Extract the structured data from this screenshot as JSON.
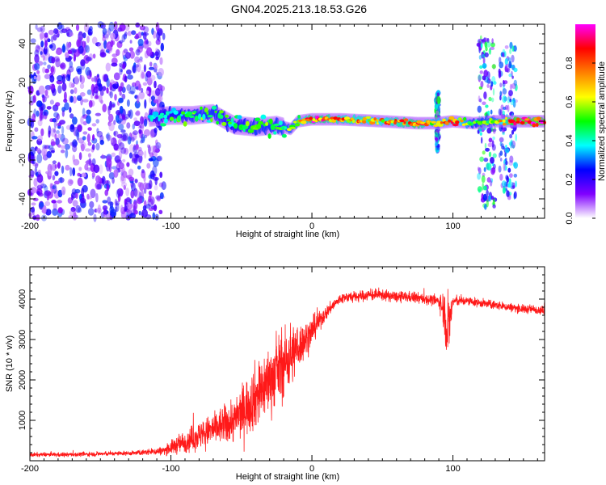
{
  "title": "GN04.2025.213.18.53.G26",
  "chart_data": [
    {
      "type": "heatmap",
      "title": "GN04.2025.213.18.53.G26",
      "xlabel": "Height of straight line (km)",
      "ylabel": "Frequency (Hz)",
      "xlim": [
        -200,
        165
      ],
      "ylim": [
        -50,
        50
      ],
      "xticks": [
        -200,
        -100,
        0,
        100
      ],
      "yticks": [
        -40,
        -20,
        0,
        20,
        40
      ],
      "colorbar": {
        "label": "Normalized spectral amplitude",
        "range": [
          0,
          1
        ],
        "ticks": [
          0.0,
          0.2,
          0.4,
          0.6,
          0.8
        ],
        "colormap": [
          "#ffffff",
          "#8000ff",
          "#0000ff",
          "#00ffff",
          "#00ff00",
          "#ffff00",
          "#ff8000",
          "#ff0000",
          "#ff00ff"
        ]
      },
      "noise_region": {
        "x_range": [
          -200,
          -110
        ],
        "amplitude": 0.15
      },
      "ridge": [
        {
          "x": -115,
          "freq": 2,
          "amp": 0.4
        },
        {
          "x": -100,
          "freq": 3,
          "amp": 0.45
        },
        {
          "x": -85,
          "freq": 3,
          "amp": 0.5
        },
        {
          "x": -70,
          "freq": 4,
          "amp": 0.5
        },
        {
          "x": -55,
          "freq": -2,
          "amp": 0.45
        },
        {
          "x": -40,
          "freq": -3,
          "amp": 0.5
        },
        {
          "x": -25,
          "freq": -2,
          "amp": 0.5
        },
        {
          "x": -15,
          "freq": -4,
          "amp": 0.55
        },
        {
          "x": -10,
          "freq": 0,
          "amp": 0.6
        },
        {
          "x": 0,
          "freq": 1,
          "amp": 0.85
        },
        {
          "x": 20,
          "freq": 1,
          "amp": 0.75
        },
        {
          "x": 50,
          "freq": 0,
          "amp": 0.7
        },
        {
          "x": 75,
          "freq": -1,
          "amp": 0.85
        },
        {
          "x": 88,
          "freq": -1,
          "amp": 0.6
        },
        {
          "x": 100,
          "freq": 0,
          "amp": 0.8
        },
        {
          "x": 115,
          "freq": -1,
          "amp": 0.5
        },
        {
          "x": 130,
          "freq": 0,
          "amp": 0.55
        },
        {
          "x": 145,
          "freq": 0,
          "amp": 0.95
        },
        {
          "x": 165,
          "freq": 0,
          "amp": 0.95
        }
      ],
      "broadband_bursts": [
        {
          "x_range": [
            118,
            130
          ],
          "freq_range": [
            -45,
            45
          ],
          "amp": 0.25
        },
        {
          "x_range": [
            133,
            145
          ],
          "freq_range": [
            -40,
            40
          ],
          "amp": 0.2
        },
        {
          "x_range": [
            88,
            90
          ],
          "freq_range": [
            -15,
            15
          ],
          "amp": 0.25
        }
      ]
    },
    {
      "type": "line",
      "xlabel": "Height of straight line (km)",
      "ylabel": "SNR (10 * v/v)",
      "xlim": [
        -200,
        165
      ],
      "ylim": [
        0,
        4800
      ],
      "xticks": [
        -200,
        -100,
        0,
        100
      ],
      "yticks": [
        1000,
        2000,
        3000,
        4000
      ],
      "line_color": "#ff0000",
      "series": [
        {
          "x": [
            -200,
            -175,
            -150,
            -125,
            -105,
            -95,
            -85,
            -75,
            -65,
            -55,
            -50,
            -45,
            -40,
            -35,
            -30,
            -25,
            -20,
            -15,
            -10,
            -5,
            0,
            5,
            10,
            15,
            20,
            25,
            30,
            40,
            50,
            60,
            70,
            80,
            90,
            94,
            96,
            98,
            100,
            110,
            120,
            130,
            140,
            150,
            160,
            165
          ],
          "y": [
            150,
            150,
            170,
            190,
            250,
            400,
            550,
            700,
            850,
            1000,
            1200,
            1400,
            1600,
            1800,
            2000,
            2200,
            2400,
            2600,
            2800,
            3000,
            3200,
            3450,
            3650,
            3850,
            4000,
            4050,
            4050,
            4100,
            4100,
            4050,
            4050,
            4000,
            3950,
            3700,
            3200,
            3500,
            3950,
            3950,
            3900,
            3850,
            3800,
            3750,
            3750,
            3700
          ],
          "noise": [
            60,
            60,
            60,
            60,
            120,
            250,
            350,
            400,
            500,
            600,
            700,
            800,
            900,
            900,
            900,
            900,
            900,
            900,
            600,
            500,
            400,
            250,
            200,
            150,
            150,
            150,
            150,
            150,
            150,
            150,
            150,
            150,
            150,
            600,
            900,
            700,
            150,
            120,
            120,
            120,
            120,
            120,
            120,
            120
          ]
        }
      ]
    }
  ]
}
